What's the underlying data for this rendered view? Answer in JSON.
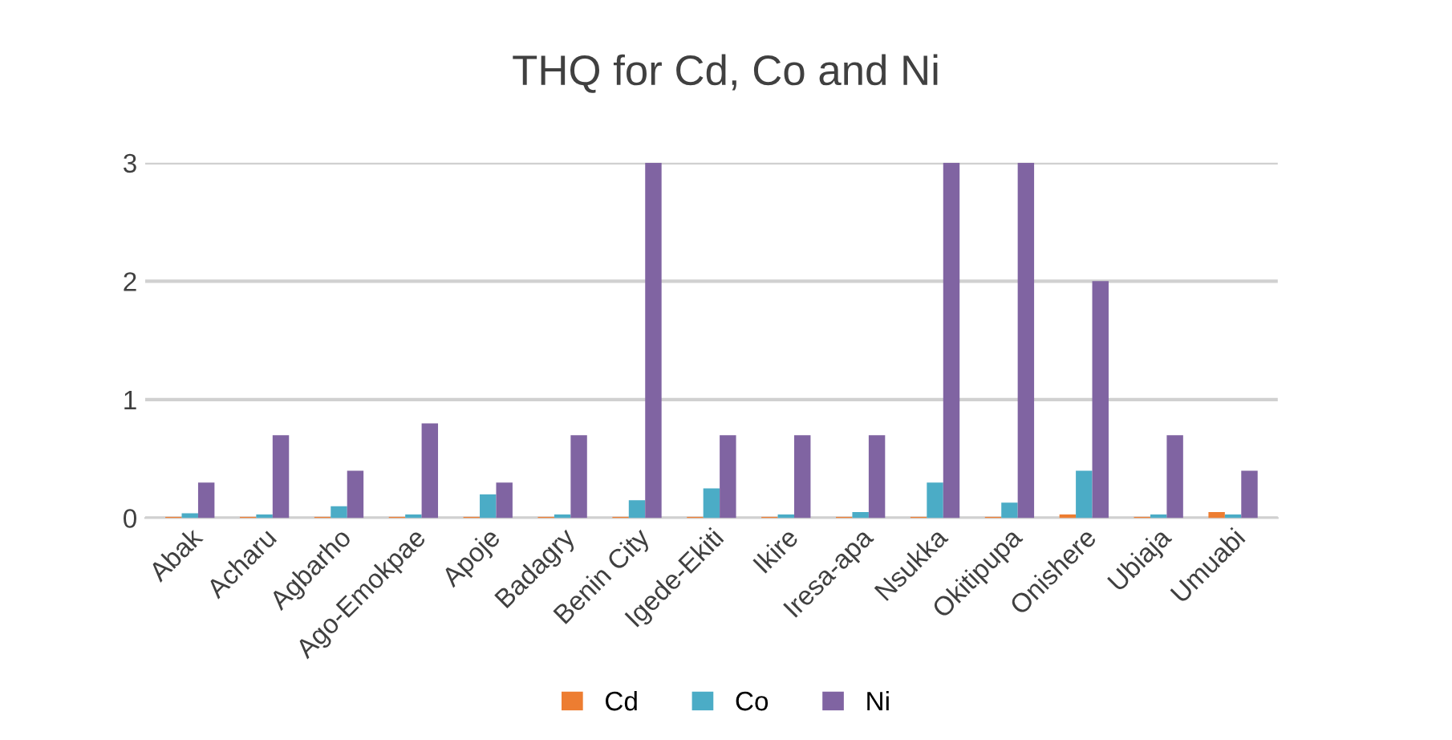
{
  "chart_data": {
    "type": "bar",
    "title": "THQ for Cd, Co and Ni",
    "categories": [
      "Abak",
      "Acharu",
      "Agbarho",
      "Ago-Emokpae",
      "Apoje",
      "Badagry",
      "Benin City",
      "Igede-Ekiti",
      "Ikire",
      "Iresa-apa",
      "Nsukka",
      "Okitipupa",
      "Onishere",
      "Ubiaja",
      "Umuabi"
    ],
    "series": [
      {
        "name": "Cd",
        "color": "#ed7d31",
        "values": [
          0.01,
          0.01,
          0.01,
          0.01,
          0.01,
          0.01,
          0.01,
          0.01,
          0.01,
          0.01,
          0.01,
          0.01,
          0.03,
          0.01,
          0.05
        ]
      },
      {
        "name": "Co",
        "color": "#4bacc6",
        "values": [
          0.04,
          0.03,
          0.1,
          0.03,
          0.2,
          0.03,
          0.15,
          0.25,
          0.03,
          0.05,
          0.3,
          0.13,
          0.4,
          0.03,
          0.03
        ]
      },
      {
        "name": "Ni",
        "color": "#8064a2",
        "values": [
          0.3,
          0.7,
          0.4,
          0.8,
          0.3,
          0.7,
          3,
          0.7,
          0.7,
          0.7,
          3,
          3,
          2,
          0.7,
          0.4
        ]
      }
    ],
    "ylim": [
      0,
      3
    ],
    "yticks": [
      0,
      1,
      2,
      3
    ],
    "grid": "y",
    "legend": "bottom"
  }
}
